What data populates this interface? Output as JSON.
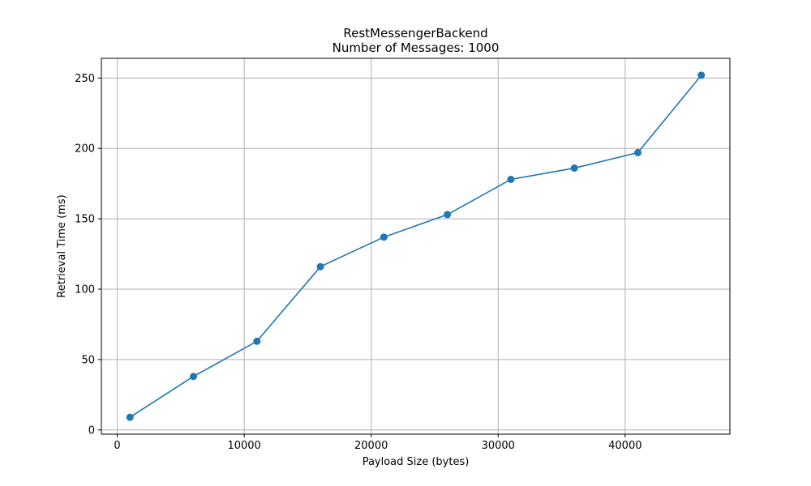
{
  "chart_data": {
    "type": "line",
    "title": "RestMessengerBackend",
    "subtitle": "Number of Messages: 1000",
    "xlabel": "Payload Size (bytes)",
    "ylabel": "Retrieval Time (ms)",
    "xlim": [
      -1250,
      48250
    ],
    "ylim": [
      -3,
      264
    ],
    "xticks": [
      0,
      10000,
      20000,
      30000,
      40000
    ],
    "yticks": [
      0,
      50,
      100,
      150,
      200,
      250
    ],
    "grid": true,
    "series": [
      {
        "x": [
          1000,
          6000,
          11000,
          16000,
          21000,
          26000,
          31000,
          36000,
          41000,
          46000
        ],
        "y": [
          9,
          38,
          63,
          116,
          137,
          153,
          178,
          186,
          197,
          252
        ],
        "color": "#1f77b4",
        "marker": "circle"
      }
    ]
  }
}
